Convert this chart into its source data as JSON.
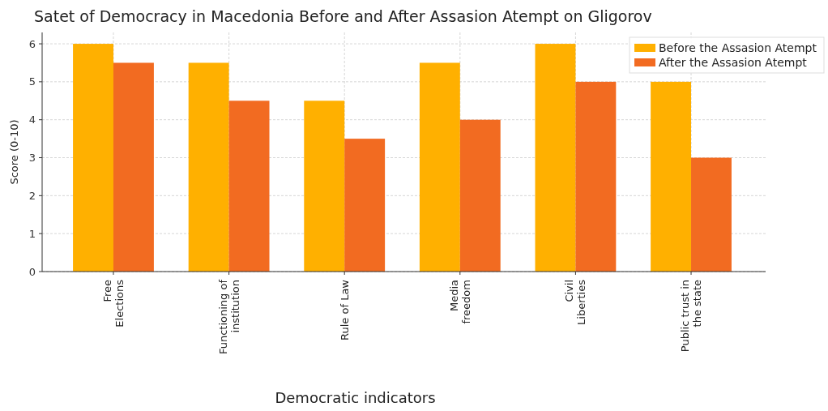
{
  "chart_data": {
    "type": "bar",
    "title": "Satet of Democracy in Macedonia Before and After Assasion Atempt on Gligorov",
    "xlabel": "Democratic indicators",
    "ylabel": "Score  (0-10)",
    "categories": [
      "Free\nElections",
      "Functioning of\ninstitution",
      "Rule of Law",
      "Media\nfreedom",
      "Civil\nLiberties",
      "Public trust in\nthe state"
    ],
    "series": [
      {
        "name": "Before the Assasion Atempt",
        "color": "#ffb000",
        "values": [
          6,
          5.5,
          4.5,
          5.5,
          6,
          5
        ]
      },
      {
        "name": "After the Assasion Atempt",
        "color": "#f26b21",
        "values": [
          5.5,
          4.5,
          3.5,
          4,
          5,
          3
        ]
      }
    ],
    "ylim": [
      0,
      6.3
    ],
    "yticks": [
      0,
      1,
      2,
      3,
      4,
      5,
      6
    ],
    "grid": true,
    "legend": "top right"
  }
}
